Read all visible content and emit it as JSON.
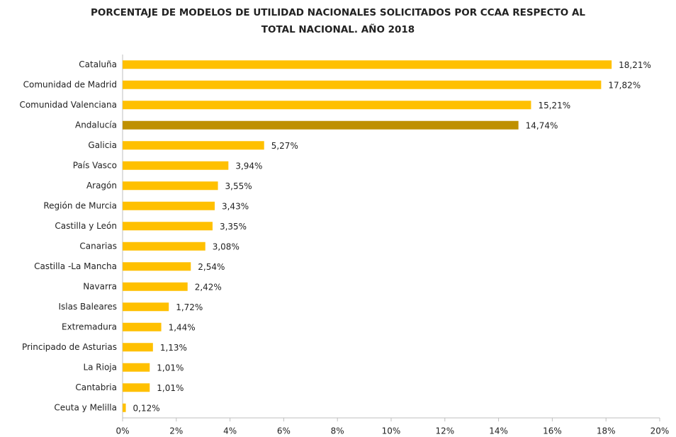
{
  "chart_data": {
    "type": "barh",
    "title": [
      "PORCENTAJE DE  MODELOS DE UTILIDAD NACIONALES SOLICITADOS POR CCAA RESPECTO AL",
      "TOTAL NACIONAL. AÑO 2018"
    ],
    "categories": [
      "Cataluña",
      "Comunidad de Madrid",
      "Comunidad Valenciana",
      "Andalucía",
      "Galicia",
      "País Vasco",
      "Aragón",
      "Región de Murcia",
      "Castilla y León",
      "Canarias",
      "Castilla -La Mancha",
      "Navarra",
      "Islas Baleares",
      "Extremadura",
      "Principado de Asturias",
      "La Rioja",
      "Cantabria",
      "Ceuta y Melilla"
    ],
    "values": [
      18.21,
      17.82,
      15.21,
      14.74,
      5.27,
      3.94,
      3.55,
      3.43,
      3.35,
      3.08,
      2.54,
      2.42,
      1.72,
      1.44,
      1.13,
      1.01,
      1.01,
      0.12
    ],
    "value_labels": [
      "18,21%",
      "17,82%",
      "15,21%",
      "14,74%",
      "5,27%",
      "3,94%",
      "3,55%",
      "3,43%",
      "3,35%",
      "3,08%",
      "2,54%",
      "2,42%",
      "1,72%",
      "1,44%",
      "1,13%",
      "1,01%",
      "1,01%",
      "0,12%"
    ],
    "colors": [
      "#ffc000",
      "#ffc000",
      "#ffc000",
      "#bf9000",
      "#ffc000",
      "#ffc000",
      "#ffc000",
      "#ffc000",
      "#ffc000",
      "#ffc000",
      "#ffc000",
      "#ffc000",
      "#ffc000",
      "#ffc000",
      "#ffc000",
      "#ffc000",
      "#ffc000",
      "#ffc000"
    ],
    "xlim": [
      0,
      20
    ],
    "xticks": [
      {
        "value": 0,
        "label": "0%"
      },
      {
        "value": 2,
        "label": "2%"
      },
      {
        "value": 4,
        "label": "4%"
      },
      {
        "value": 6,
        "label": "6%"
      },
      {
        "value": 8,
        "label": "8%"
      },
      {
        "value": 10,
        "label": "10%"
      },
      {
        "value": 12,
        "label": "12%"
      },
      {
        "value": 14,
        "label": "14%"
      },
      {
        "value": 16,
        "label": "16%"
      },
      {
        "value": 18,
        "label": "18%"
      },
      {
        "value": 20,
        "label": "20%"
      }
    ],
    "grid": false
  }
}
